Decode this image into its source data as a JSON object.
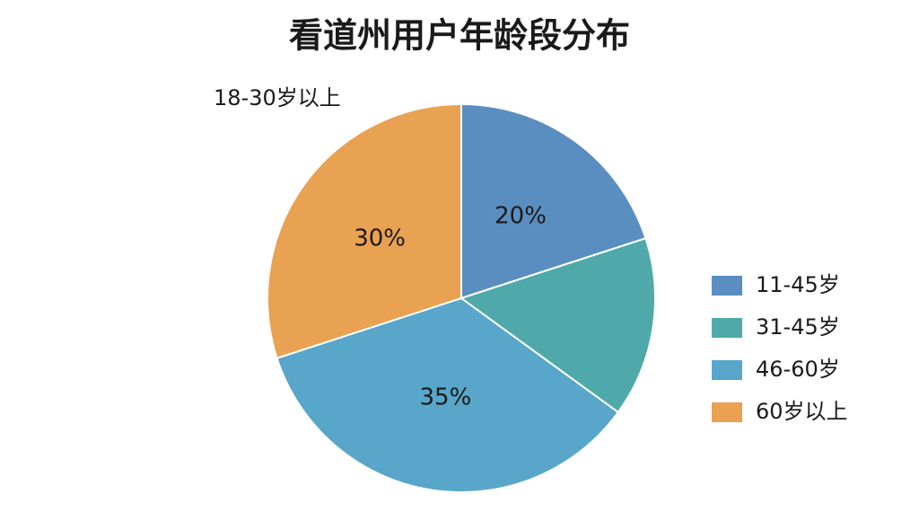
{
  "chart_data": {
    "type": "pie",
    "title": "看道州用户年龄段分布",
    "annotation": "18-30岁以上",
    "categories": [
      "11-45岁",
      "31-45岁",
      "46-60岁",
      "60岁以上"
    ],
    "values": [
      20,
      15,
      35,
      30
    ],
    "value_labels": [
      "20%",
      null,
      "35%",
      "30%"
    ],
    "colors": [
      "#5b8ec0",
      "#4fa9aa",
      "#58a6c9",
      "#e9a152"
    ],
    "legend": "right"
  }
}
